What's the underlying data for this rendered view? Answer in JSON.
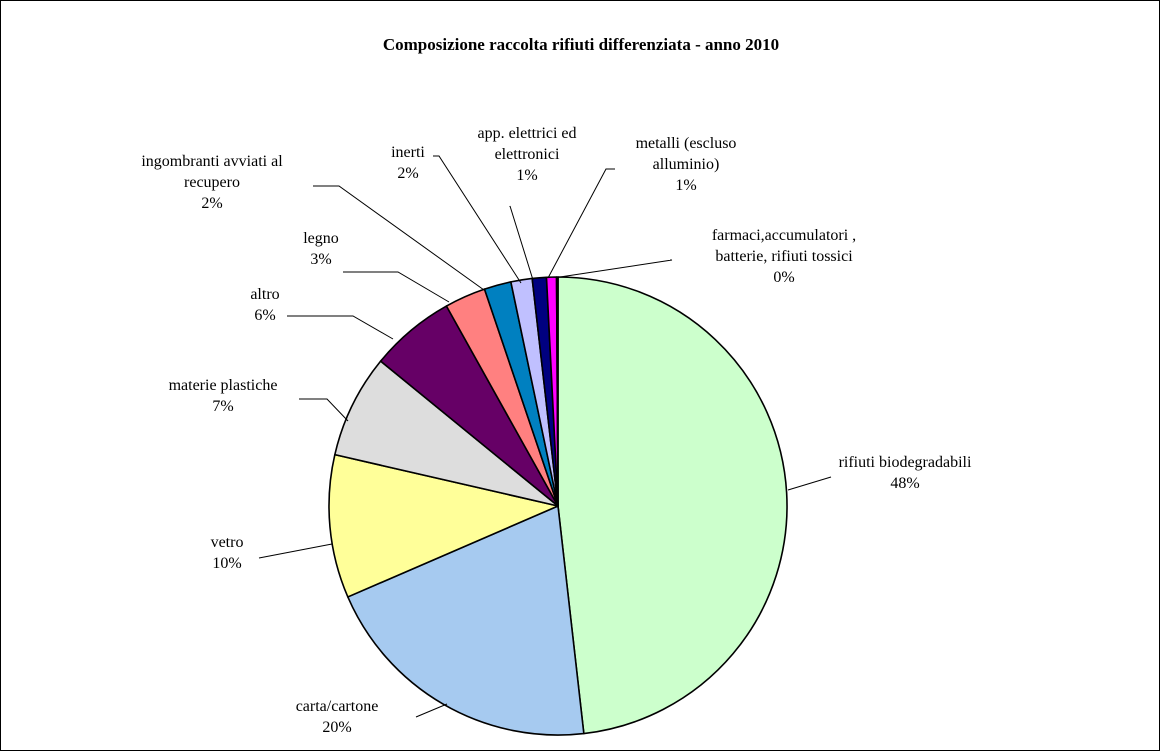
{
  "chart_data": {
    "type": "pie",
    "title": "Composizione raccolta rifiuti differenziata - anno 2010",
    "start_angle_deg": 0,
    "direction": "clockwise",
    "slices": [
      {
        "label": [
          "rifiuti biodegradabili"
        ],
        "pct_label": "48%",
        "value": 48.2,
        "color": "#ccffcc"
      },
      {
        "label": [
          "carta/cartone"
        ],
        "pct_label": "20%",
        "value": 20.3,
        "color": "#a6caf0"
      },
      {
        "label": [
          "vetro"
        ],
        "pct_label": "10%",
        "value": 10.1,
        "color": "#ffff99"
      },
      {
        "label": [
          "materie plastiche"
        ],
        "pct_label": "7%",
        "value": 7.3,
        "color": "#dddddd"
      },
      {
        "label": [
          "altro"
        ],
        "pct_label": "6%",
        "value": 6.0,
        "color": "#660066"
      },
      {
        "label": [
          "legno"
        ],
        "pct_label": "3%",
        "value": 2.9,
        "color": "#ff8080"
      },
      {
        "label": [
          "ingombranti avviati al",
          "recupero"
        ],
        "pct_label": "2%",
        "value": 1.9,
        "color": "#0080c0"
      },
      {
        "label": [
          "inerti"
        ],
        "pct_label": "2%",
        "value": 1.5,
        "color": "#c0c0ff"
      },
      {
        "label": [
          "app. elettrici ed",
          "elettronici"
        ],
        "pct_label": "1%",
        "value": 1.0,
        "color": "#000080"
      },
      {
        "label": [
          "metalli (escluso",
          "alluminio)"
        ],
        "pct_label": "1%",
        "value": 0.7,
        "color": "#ff00ff"
      },
      {
        "label": [
          "farmaci,accumulatori ,",
          "batterie, rifiuti tossici"
        ],
        "pct_label": "0%",
        "value": 0.1,
        "color": "#00ffff"
      }
    ]
  }
}
